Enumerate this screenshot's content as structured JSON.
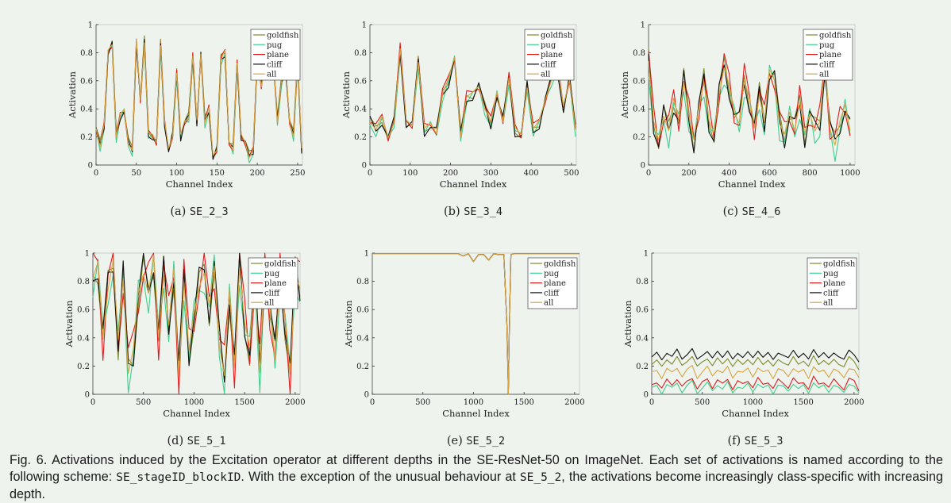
{
  "series_colors": {
    "goldfish": "#7f8a2a",
    "pug": "#3ecf8e",
    "plane": "#e01b1b",
    "cliff": "#111111",
    "all": "#d9a441"
  },
  "chart_data": [
    {
      "type": "line",
      "panel_label": "(a)",
      "name": "SE_2_3",
      "xlabel": "Channel Index",
      "ylabel": "Activation",
      "xlim": [
        0,
        256
      ],
      "ylim": [
        0,
        1
      ],
      "xticks": [
        0,
        50,
        100,
        150,
        200,
        250
      ],
      "yticks": [
        0,
        0.2,
        0.4,
        0.6,
        0.8,
        1
      ],
      "ytick_labels": [
        "0",
        "0.2",
        "0.4",
        "0.6",
        "0.8",
        "1"
      ],
      "legend": [
        "goldfish",
        "pug",
        "plane",
        "cliff",
        "all"
      ],
      "legend_position": "top-right",
      "base_x": [
        0,
        5,
        10,
        15,
        20,
        25,
        30,
        35,
        40,
        45,
        50,
        55,
        60,
        65,
        70,
        75,
        80,
        85,
        90,
        95,
        100,
        105,
        110,
        115,
        120,
        125,
        130,
        135,
        140,
        145,
        150,
        155,
        160,
        165,
        170,
        175,
        180,
        185,
        190,
        195,
        200,
        205,
        210,
        215,
        220,
        225,
        230,
        235,
        240,
        245,
        250,
        255
      ],
      "base_y": [
        0.25,
        0.13,
        0.28,
        0.8,
        0.85,
        0.2,
        0.35,
        0.38,
        0.15,
        0.1,
        0.88,
        0.45,
        0.87,
        0.22,
        0.2,
        0.15,
        0.85,
        0.3,
        0.1,
        0.2,
        0.65,
        0.2,
        0.3,
        0.33,
        0.77,
        0.3,
        0.78,
        0.3,
        0.4,
        0.05,
        0.1,
        0.75,
        0.8,
        0.15,
        0.1,
        0.72,
        0.2,
        0.15,
        0.05,
        0.1,
        0.78,
        0.55,
        0.8,
        0.65,
        0.73,
        0.3,
        0.6,
        0.7,
        0.3,
        0.2,
        0.75,
        0.1
      ],
      "series": [
        {
          "name": "goldfish",
          "offset": 0.02,
          "wiggle": 0.03
        },
        {
          "name": "pug",
          "offset": -0.01,
          "wiggle": 0.03
        },
        {
          "name": "plane",
          "offset": 0.01,
          "wiggle": 0.02
        },
        {
          "name": "cliff",
          "offset": 0,
          "wiggle": 0.03
        },
        {
          "name": "all",
          "offset": 0.01,
          "wiggle": 0.01
        }
      ]
    },
    {
      "type": "line",
      "panel_label": "(b)",
      "name": "SE_3_4",
      "xlabel": "Channel Index",
      "ylabel": "Activation",
      "xlim": [
        0,
        512
      ],
      "ylim": [
        0,
        1
      ],
      "xticks": [
        0,
        100,
        200,
        300,
        400,
        500
      ],
      "yticks": [
        0,
        0.2,
        0.4,
        0.6,
        0.8,
        1
      ],
      "ytick_labels": [
        "0",
        "0.2",
        "0.4",
        "0.6",
        "0.8",
        "1"
      ],
      "legend": [
        "goldfish",
        "pug",
        "plane",
        "cliff",
        "all"
      ],
      "legend_position": "top-right",
      "base_x": [
        0,
        15,
        30,
        45,
        60,
        75,
        90,
        105,
        120,
        135,
        150,
        165,
        180,
        195,
        210,
        225,
        240,
        255,
        270,
        285,
        300,
        315,
        330,
        345,
        360,
        375,
        390,
        405,
        420,
        435,
        450,
        465,
        480,
        495,
        510
      ],
      "base_y": [
        0.3,
        0.25,
        0.33,
        0.18,
        0.3,
        0.82,
        0.3,
        0.27,
        0.73,
        0.25,
        0.28,
        0.22,
        0.5,
        0.6,
        0.75,
        0.2,
        0.48,
        0.5,
        0.55,
        0.4,
        0.3,
        0.5,
        0.3,
        0.62,
        0.25,
        0.2,
        0.55,
        0.25,
        0.3,
        0.45,
        0.6,
        0.7,
        0.4,
        0.6,
        0.25
      ],
      "series": [
        {
          "name": "goldfish",
          "offset": 0.01,
          "wiggle": 0.04
        },
        {
          "name": "pug",
          "offset": -0.01,
          "wiggle": 0.04
        },
        {
          "name": "plane",
          "offset": 0.02,
          "wiggle": 0.03
        },
        {
          "name": "cliff",
          "offset": 0,
          "wiggle": 0.05
        },
        {
          "name": "all",
          "offset": 0.01,
          "wiggle": 0.01
        }
      ]
    },
    {
      "type": "line",
      "panel_label": "(c)",
      "name": "SE_4_6",
      "xlabel": "Channel Index",
      "ylabel": "Activation",
      "xlim": [
        0,
        1024
      ],
      "ylim": [
        0,
        1
      ],
      "xticks": [
        0,
        200,
        400,
        600,
        800,
        1000
      ],
      "yticks": [
        0,
        0.2,
        0.4,
        0.6,
        0.8,
        1
      ],
      "ytick_labels": [
        "0",
        "0.2",
        "0.4",
        "0.6",
        "0.8",
        "1"
      ],
      "legend": [
        "goldfish",
        "pug",
        "plane",
        "cliff",
        "all"
      ],
      "legend_position": "top-right",
      "base_x": [
        0,
        25,
        50,
        75,
        100,
        125,
        150,
        175,
        200,
        225,
        250,
        275,
        300,
        325,
        350,
        375,
        400,
        425,
        450,
        475,
        500,
        525,
        550,
        575,
        600,
        625,
        650,
        675,
        700,
        725,
        750,
        775,
        800,
        825,
        850,
        875,
        900,
        925,
        950,
        975,
        1000
      ],
      "base_y": [
        0.75,
        0.3,
        0.15,
        0.35,
        0.25,
        0.45,
        0.3,
        0.6,
        0.35,
        0.15,
        0.4,
        0.6,
        0.3,
        0.2,
        0.5,
        0.7,
        0.55,
        0.35,
        0.3,
        0.6,
        0.45,
        0.25,
        0.5,
        0.3,
        0.65,
        0.6,
        0.3,
        0.2,
        0.35,
        0.25,
        0.45,
        0.2,
        0.35,
        0.25,
        0.3,
        0.7,
        0.25,
        0.15,
        0.3,
        0.4,
        0.25
      ],
      "series": [
        {
          "name": "goldfish",
          "offset": 0.02,
          "wiggle": 0.07
        },
        {
          "name": "pug",
          "offset": -0.03,
          "wiggle": 0.1
        },
        {
          "name": "plane",
          "offset": 0.03,
          "wiggle": 0.1
        },
        {
          "name": "cliff",
          "offset": 0,
          "wiggle": 0.08
        },
        {
          "name": "all",
          "offset": 0.01,
          "wiggle": 0.02
        }
      ]
    },
    {
      "type": "line",
      "panel_label": "(d)",
      "name": "SE_5_1",
      "xlabel": "Channel Index",
      "ylabel": "Activation",
      "xlim": [
        0,
        2048
      ],
      "ylim": [
        0,
        1
      ],
      "xticks": [
        0,
        500,
        1000,
        1500,
        2000
      ],
      "yticks": [
        0,
        0.2,
        0.4,
        0.6,
        0.8,
        1
      ],
      "ytick_labels": [
        "0",
        "0.2",
        "0.4",
        "0.6",
        "0.8",
        "1"
      ],
      "legend": [
        "goldfish",
        "pug",
        "plane",
        "cliff",
        "all"
      ],
      "legend_position": "top-right",
      "base_x": [
        0,
        50,
        100,
        150,
        200,
        250,
        300,
        350,
        400,
        450,
        500,
        550,
        600,
        650,
        700,
        750,
        800,
        850,
        900,
        950,
        1000,
        1050,
        1100,
        1150,
        1200,
        1250,
        1300,
        1350,
        1400,
        1450,
        1500,
        1550,
        1600,
        1650,
        1700,
        1750,
        1800,
        1850,
        1900,
        1950,
        2000,
        2048
      ],
      "base_y": [
        0.85,
        0.9,
        0.4,
        0.8,
        0.95,
        0.35,
        0.85,
        0.2,
        0.3,
        0.7,
        0.9,
        0.75,
        0.95,
        0.4,
        0.9,
        0.5,
        0.85,
        0.15,
        0.85,
        0.3,
        0.55,
        0.8,
        0.9,
        0.6,
        0.9,
        0.4,
        0.15,
        0.7,
        0.2,
        0.95,
        0.5,
        0.3,
        0.85,
        0.2,
        0.9,
        0.6,
        0.3,
        0.85,
        0.5,
        0.15,
        0.9,
        0.75
      ],
      "series": [
        {
          "name": "goldfish",
          "offset": -0.02,
          "wiggle": 0.1
        },
        {
          "name": "pug",
          "offset": -0.04,
          "wiggle": 0.15
        },
        {
          "name": "plane",
          "offset": 0.02,
          "wiggle": 0.18
        },
        {
          "name": "cliff",
          "offset": 0,
          "wiggle": 0.1
        },
        {
          "name": "all",
          "offset": -0.01,
          "wiggle": 0.05
        }
      ]
    },
    {
      "type": "line",
      "panel_label": "(e)",
      "name": "SE_5_2",
      "xlabel": "Channel Index",
      "ylabel": "Activation",
      "xlim": [
        0,
        2048
      ],
      "ylim": [
        0,
        1
      ],
      "xticks": [
        0,
        500,
        1000,
        1500,
        2000
      ],
      "yticks": [
        0,
        0.2,
        0.4,
        0.6,
        0.8,
        1
      ],
      "ytick_labels": [
        "0",
        "0.2",
        "0.4",
        "0.6",
        "0.8",
        "1"
      ],
      "legend": [
        "goldfish",
        "pug",
        "plane",
        "cliff",
        "all"
      ],
      "legend_position": "top-right",
      "base_x": [
        0,
        850,
        900,
        950,
        1000,
        1050,
        1100,
        1150,
        1200,
        1250,
        1300,
        1330,
        1345,
        1355,
        1370,
        1400,
        1500,
        1700,
        2048
      ],
      "base_y": [
        0.995,
        0.995,
        0.98,
        0.995,
        0.94,
        0.99,
        0.99,
        0.95,
        0.995,
        0.99,
        0.99,
        0.5,
        0.0,
        0.5,
        0.99,
        0.995,
        0.995,
        0.995,
        0.995
      ],
      "series": [
        {
          "name": "goldfish",
          "offset": 0,
          "wiggle": 0
        },
        {
          "name": "pug",
          "offset": 0,
          "wiggle": 0
        },
        {
          "name": "plane",
          "offset": 0,
          "wiggle": 0
        },
        {
          "name": "cliff",
          "offset": 0,
          "wiggle": 0
        },
        {
          "name": "all",
          "offset": 0,
          "wiggle": 0
        }
      ]
    },
    {
      "type": "line",
      "panel_label": "(f)",
      "name": "SE_5_3",
      "xlabel": "Channel Index",
      "ylabel": "Activation",
      "xlim": [
        0,
        2048
      ],
      "ylim": [
        0,
        1
      ],
      "xticks": [
        0,
        500,
        1000,
        1500,
        2000
      ],
      "yticks": [
        0,
        0.2,
        0.4,
        0.6,
        0.8,
        1
      ],
      "ytick_labels": [
        "0",
        "0.2",
        "0.4",
        "0.6",
        "0.8",
        "1"
      ],
      "legend": [
        "goldfish",
        "pug",
        "plane",
        "cliff",
        "all"
      ],
      "legend_position": "top-right",
      "base_x": [
        0,
        50,
        100,
        150,
        200,
        250,
        300,
        350,
        400,
        450,
        500,
        550,
        600,
        650,
        700,
        750,
        800,
        850,
        900,
        950,
        1000,
        1050,
        1100,
        1150,
        1200,
        1250,
        1300,
        1350,
        1400,
        1450,
        1500,
        1550,
        1600,
        1650,
        1700,
        1750,
        1800,
        1850,
        1900,
        1950,
        2000,
        2048
      ],
      "base_y": [
        0.0,
        0.02,
        -0.03,
        0.03,
        0.0,
        0.04,
        -0.02,
        0.02,
        0.05,
        -0.03,
        0.01,
        0.04,
        -0.02,
        0.03,
        0.0,
        0.04,
        -0.03,
        0.02,
        0.0,
        0.03,
        -0.02,
        0.04,
        0.0,
        0.02,
        -0.03,
        0.03,
        0.01,
        -0.02,
        0.04,
        0.0,
        0.02,
        -0.03,
        0.05,
        0.0,
        0.02,
        -0.02,
        0.03,
        0.0,
        -0.03,
        0.04,
        0.02,
        -0.04
      ],
      "series": [
        {
          "name": "goldfish",
          "offset": 0.22,
          "wiggle": 0.01
        },
        {
          "name": "pug",
          "offset": 0.04,
          "wiggle": 0.01
        },
        {
          "name": "plane",
          "offset": 0.07,
          "wiggle": 0.01
        },
        {
          "name": "cliff",
          "offset": 0.27,
          "wiggle": 0.01
        },
        {
          "name": "all",
          "offset": 0.15,
          "wiggle": 0.01
        }
      ]
    }
  ],
  "caption": {
    "lead": "Fig. 6. Activations induced by the Excitation operator at different depths in the SE-ResNet-50 on ImageNet. Each set of activations is named according to the following scheme: ",
    "scheme_code": "SE_stageID_blockID",
    "middle": ". With the exception of the unusual behaviour at ",
    "exception_code": "SE_5_2",
    "tail": ", the activations become increasingly class-specific with increasing depth."
  }
}
